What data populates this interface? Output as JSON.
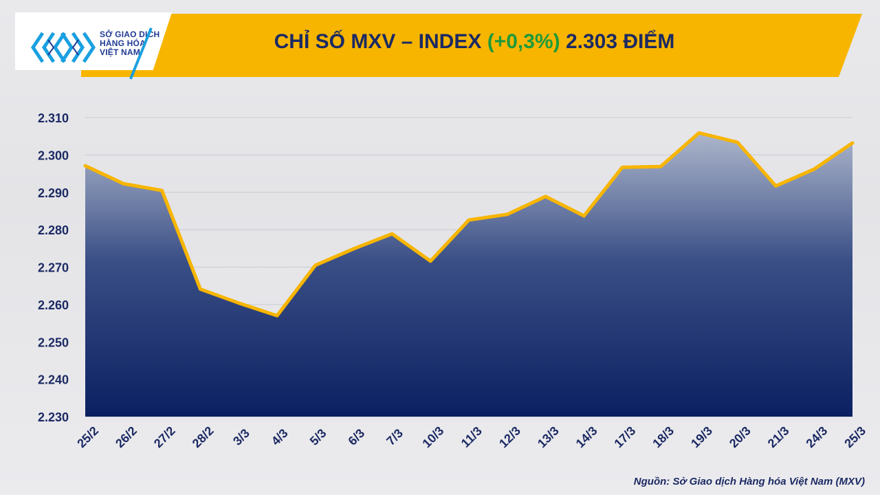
{
  "logo": {
    "name": "logo-mxv",
    "line1": "SỞ GIAO DỊCH",
    "line2": "HÀNG HÓA",
    "line3": "VIỆT NAM"
  },
  "title": {
    "prefix": "CHỈ SỐ MXV – INDEX ",
    "change": "(+0,3%)",
    "suffix": " 2.303 ĐIỂM"
  },
  "colors": {
    "banner": "#f7b500",
    "line": "#f7b500",
    "area_top": "#a9b3c9",
    "area_bottom": "#0b2061",
    "text": "#1c2a63",
    "change_positive": "#1f9a3a"
  },
  "chart_data": {
    "type": "area",
    "categories": [
      "25/2",
      "26/2",
      "27/2",
      "28/2",
      "3/3",
      "4/3",
      "5/3",
      "6/3",
      "7/3",
      "10/3",
      "11/3",
      "12/3",
      "13/3",
      "14/3",
      "17/3",
      "18/3",
      "19/3",
      "20/3",
      "21/3",
      "24/3",
      "25/3"
    ],
    "values": [
      2297.1,
      2292.3,
      2290.5,
      2264.1,
      2260.4,
      2257.0,
      2270.5,
      2274.9,
      2278.9,
      2271.6,
      2282.6,
      2284.1,
      2288.9,
      2283.7,
      2296.7,
      2296.9,
      2305.9,
      2303.4,
      2291.7,
      2296.2,
      2303.2
    ],
    "ylim": [
      2230,
      2310
    ],
    "yticks": [
      "2.230",
      "2.240",
      "2.250",
      "2.260",
      "2.270",
      "2.280",
      "2.290",
      "2.300",
      "2.310"
    ],
    "ytick_values": [
      2230,
      2240,
      2250,
      2260,
      2270,
      2280,
      2290,
      2300,
      2310
    ],
    "grid": true,
    "title": "CHỈ SỐ MXV – INDEX (+0,3%) 2.303 ĐIỂM",
    "xlabel": "",
    "ylabel": ""
  },
  "source": "Nguồn: Sở Giao dịch Hàng hóa Việt Nam (MXV)"
}
